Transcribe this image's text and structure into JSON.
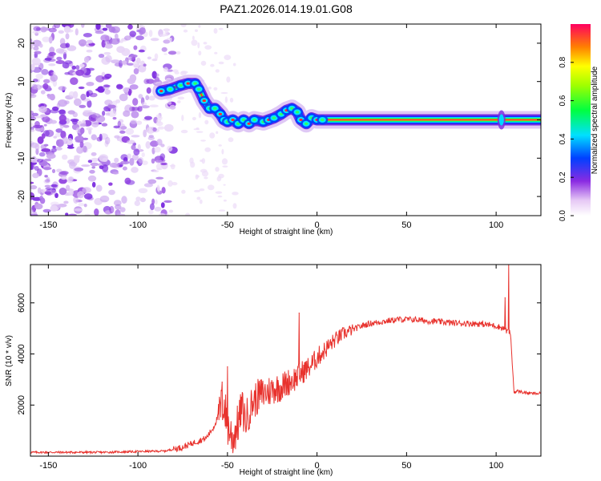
{
  "title": "PAZ1.2026.014.19.01.G08",
  "chart_data": [
    {
      "type": "heatmap",
      "name": "spectrogram",
      "xlabel": "Height of straight line (km)",
      "ylabel": "Frequency (Hz)",
      "xlim": [
        -160,
        125
      ],
      "ylim": [
        -25,
        25
      ],
      "xticks": [
        -150,
        -100,
        -50,
        0,
        50,
        100
      ],
      "yticks": [
        -20,
        -10,
        0,
        10,
        20
      ],
      "ridge": [
        [
          -87,
          7.5
        ],
        [
          -82,
          8
        ],
        [
          -76,
          9
        ],
        [
          -72,
          9.5
        ],
        [
          -68,
          9.5
        ],
        [
          -66,
          8
        ],
        [
          -63,
          5
        ],
        [
          -60,
          3
        ],
        [
          -57,
          3
        ],
        [
          -54,
          1.5
        ],
        [
          -52,
          0
        ],
        [
          -50,
          -0.5
        ],
        [
          -47,
          0
        ],
        [
          -44,
          -1
        ],
        [
          -41,
          0
        ],
        [
          -38,
          -1
        ],
        [
          -35,
          0
        ],
        [
          -30,
          -0.5
        ],
        [
          -27,
          0
        ],
        [
          -24,
          0.5
        ],
        [
          -20,
          1.5
        ],
        [
          -17,
          2.5
        ],
        [
          -14,
          3
        ],
        [
          -11,
          2
        ],
        [
          -9,
          0
        ],
        [
          -6,
          -1
        ],
        [
          -3,
          0.5
        ],
        [
          0,
          0
        ],
        [
          3,
          0
        ],
        [
          8,
          0
        ],
        [
          20,
          0
        ],
        [
          50,
          0
        ],
        [
          100,
          0
        ],
        [
          125,
          0
        ]
      ]
    },
    {
      "type": "line",
      "name": "snr",
      "xlabel": "Height of straight line (km)",
      "ylabel": "SNR (10 * v/v)",
      "xlim": [
        -160,
        125
      ],
      "ylim": [
        0,
        7500
      ],
      "xticks": [
        -150,
        -100,
        -50,
        0,
        50,
        100
      ],
      "yticks": [
        2000,
        4000,
        6000
      ],
      "color": "#e8322d",
      "series": [
        {
          "name": "SNR",
          "x": [
            -160,
            -140,
            -120,
            -100,
            -85,
            -75,
            -68,
            -62,
            -58,
            -55,
            -52,
            -50,
            -47,
            -44,
            -42,
            -40,
            -36,
            -32,
            -28,
            -24,
            -20,
            -16,
            -12,
            -8,
            -4,
            0,
            5,
            10,
            15,
            20,
            25,
            30,
            35,
            40,
            45,
            50,
            55,
            60,
            65,
            70,
            75,
            80,
            85,
            90,
            95,
            100,
            104,
            106,
            108,
            110,
            112,
            115,
            120,
            125
          ],
          "y": [
            150,
            150,
            150,
            180,
            200,
            350,
            550,
            700,
            1100,
            1600,
            2100,
            1200,
            700,
            1300,
            1900,
            1400,
            2100,
            2400,
            2500,
            2650,
            2700,
            2900,
            3050,
            3300,
            3500,
            3850,
            4200,
            4550,
            4800,
            4950,
            5100,
            5200,
            5250,
            5300,
            5350,
            5350,
            5350,
            5300,
            5280,
            5250,
            5220,
            5200,
            5200,
            5180,
            5150,
            5100,
            5000,
            4900,
            4800,
            2500,
            2550,
            2500,
            2450,
            2450
          ]
        }
      ],
      "spikes": [
        {
          "x": -53,
          "y": 2900
        },
        {
          "x": -50,
          "y": 3500
        },
        {
          "x": -10,
          "y": 5600
        },
        {
          "x": 105,
          "y": 6200
        },
        {
          "x": 107,
          "y": 7500
        }
      ]
    },
    {
      "type": "colorbar",
      "name": "colorbar",
      "label": "Normalized spectral amplitude",
      "range": [
        0,
        1
      ],
      "ticks": [
        "0.0",
        "0.2",
        "0.4",
        "0.6",
        "0.8"
      ]
    }
  ]
}
